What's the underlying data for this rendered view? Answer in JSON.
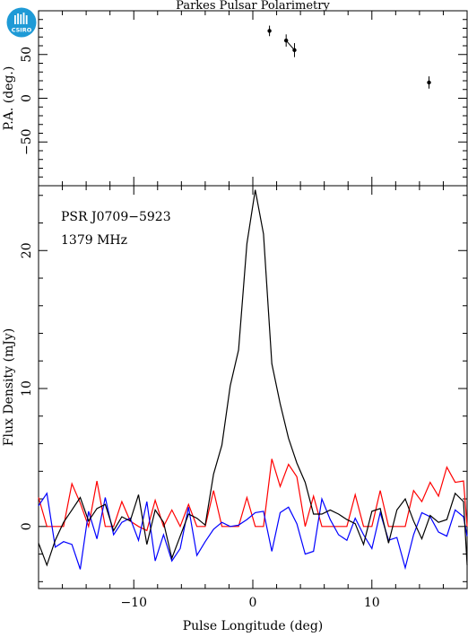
{
  "logo": {
    "text": "CSIRO",
    "color": "#1e9ad6"
  },
  "chart_data": [
    {
      "type": "scatter",
      "title": "Parkes Pulsar Polarimetry",
      "xlabel": "",
      "ylabel": "P.A. (deg.)",
      "xlim": [
        -18,
        18
      ],
      "ylim": [
        -100,
        100
      ],
      "yticks": [
        -50,
        0,
        50
      ],
      "points": [
        {
          "x": 1.4,
          "y": 77,
          "err": 6
        },
        {
          "x": 2.8,
          "y": 66,
          "err": 7
        },
        {
          "x": 3.5,
          "y": 55,
          "err": 8
        },
        {
          "x": 14.8,
          "y": 18,
          "err": 7
        }
      ],
      "connect": [
        [
          1,
          2
        ]
      ],
      "color": "#000000"
    },
    {
      "type": "line",
      "annotations": [
        "PSR J0709−5923",
        "1379 MHz"
      ],
      "xlabel": "Pulse Longitude (deg)",
      "ylabel": "Flux Density (mJy)",
      "xlim": [
        -18,
        18
      ],
      "ylim": [
        -4.5,
        24.7
      ],
      "xticks": [
        -10,
        0,
        10
      ],
      "yticks": [
        0,
        10,
        20
      ],
      "x": [
        -18,
        -17.3,
        -16.6,
        -15.9,
        -15.2,
        -14.5,
        -13.8,
        -13.1,
        -12.4,
        -11.7,
        -11,
        -10.3,
        -9.6,
        -8.9,
        -8.2,
        -7.5,
        -6.8,
        -6.1,
        -5.4,
        -4.7,
        -4,
        -3.3,
        -2.6,
        -1.9,
        -1.2,
        -0.5,
        0.2,
        0.9,
        1.6,
        2.3,
        3,
        3.7,
        4.4,
        5.1,
        5.8,
        6.5,
        7.2,
        7.9,
        8.6,
        9.3,
        10,
        10.7,
        11.4,
        12.1,
        12.8,
        13.5,
        14.2,
        14.9,
        15.6,
        16.3,
        17,
        17.7,
        18
      ],
      "series": [
        {
          "color": "#000000",
          "values": [
            -1.2,
            -2.8,
            -1.0,
            0.3,
            1.2,
            2.1,
            0.4,
            1.3,
            1.6,
            -0.3,
            0.7,
            0.4,
            2.3,
            -1.3,
            1.2,
            0.3,
            -2.3,
            -0.7,
            0.9,
            0.6,
            0.1,
            3.8,
            5.9,
            10.2,
            12.8,
            20.5,
            24.4,
            21.2,
            11.8,
            8.9,
            6.4,
            4.6,
            3.2,
            0.9,
            0.9,
            1.2,
            0.9,
            0.5,
            0.2,
            -1.3,
            1.1,
            1.3,
            -1.2,
            1.2,
            2.0,
            0.4,
            -0.9,
            0.8,
            0.3,
            0.5,
            2.4,
            1.8,
            -2.8
          ]
        },
        {
          "color": "#ff0000",
          "values": [
            2.1,
            0.0,
            0.0,
            0.0,
            3.1,
            1.7,
            0.0,
            3.3,
            0.0,
            0.0,
            1.8,
            0.4,
            0.0,
            -0.3,
            1.9,
            0.0,
            1.2,
            0.0,
            1.6,
            0.0,
            0.0,
            2.6,
            0.0,
            0.0,
            0.0,
            2.1,
            0.0,
            0.0,
            4.9,
            2.9,
            4.5,
            3.6,
            0.0,
            2.2,
            0.0,
            0.0,
            0.0,
            0.0,
            2.3,
            0.0,
            0.0,
            2.6,
            0.0,
            0.0,
            0.0,
            2.6,
            1.8,
            3.2,
            2.2,
            4.3,
            3.2,
            3.3,
            0.0
          ]
        },
        {
          "color": "#0000ff",
          "values": [
            1.5,
            2.4,
            -1.5,
            -1.1,
            -1.3,
            -3.1,
            1.1,
            -0.9,
            2.1,
            -0.6,
            0.3,
            0.6,
            -1.0,
            1.8,
            -2.5,
            -0.6,
            -2.5,
            -1.6,
            1.4,
            -2.1,
            -1.1,
            -0.2,
            0.3,
            0.0,
            0.1,
            0.5,
            1.0,
            1.1,
            -1.8,
            1.0,
            1.4,
            0.2,
            -2.0,
            -1.8,
            2.0,
            0.5,
            -0.6,
            -1.0,
            0.6,
            -0.6,
            -1.6,
            1.0,
            -1.0,
            -0.8,
            -3.0,
            -0.6,
            1.0,
            0.7,
            -0.4,
            -0.7,
            1.2,
            0.7,
            -0.7
          ]
        }
      ]
    }
  ]
}
